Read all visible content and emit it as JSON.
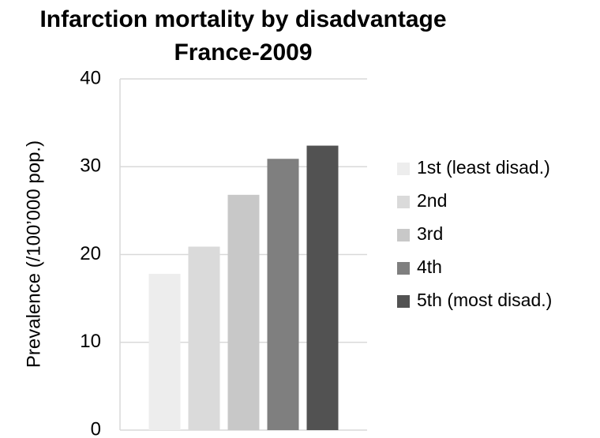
{
  "chart_data": {
    "type": "bar",
    "title": "Infarction mortality by disadvantage",
    "subtitle": "France-2009",
    "ylabel": "Prevalence (/100’000 pop.)",
    "categories": [
      null
    ],
    "series": [
      {
        "name": "1st (least disad.)",
        "color": "#ededed",
        "values": [
          17.8
        ]
      },
      {
        "name": "2nd",
        "color": "#dadada",
        "values": [
          20.9
        ]
      },
      {
        "name": "3rd",
        "color": "#c8c8c8",
        "values": [
          26.8
        ]
      },
      {
        "name": "4th",
        "color": "#7f7f7f",
        "values": [
          30.9
        ]
      },
      {
        "name": "5th (most disad.)",
        "color": "#525252",
        "values": [
          32.4
        ]
      }
    ],
    "ylim": [
      0,
      40
    ],
    "yticks": [
      0,
      10,
      20,
      30,
      40
    ],
    "grid": true,
    "legend": "right"
  }
}
